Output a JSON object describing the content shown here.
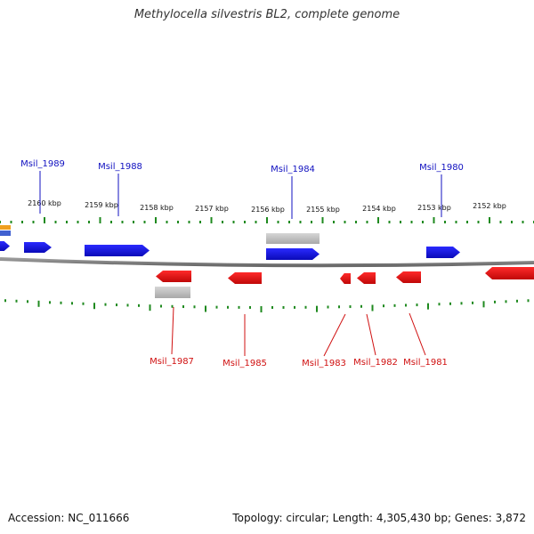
{
  "title": "Methylocella silvestris BL2, complete genome",
  "footer": {
    "accession": "Accession: NC_011666",
    "topology": "Topology: circular; Length: 4,305,430 bp; Genes: 3,872"
  },
  "colors": {
    "forward": "#1010e0",
    "reverse": "#e01010",
    "rna": "#b8b8b8",
    "tick": "#1f8a1f",
    "backbone": "#8a8a8a",
    "forward_label": "#1010c0",
    "reverse_label": "#d01010"
  },
  "scale": {
    "labels": [
      "2160 kbp",
      "2159 kbp",
      "2158 kbp",
      "2157 kbp",
      "2156 kbp",
      "2155 kbp",
      "2154 kbp",
      "2153 kbp",
      "2152 kbp"
    ]
  },
  "genes": {
    "forward": [
      "Msil_1989",
      "Msil_1988",
      "Msil_1984",
      "Msil_1980"
    ],
    "reverse": [
      "Msil_1987",
      "Msil_1985",
      "Msil_1983",
      "Msil_1982",
      "Msil_1981"
    ]
  }
}
